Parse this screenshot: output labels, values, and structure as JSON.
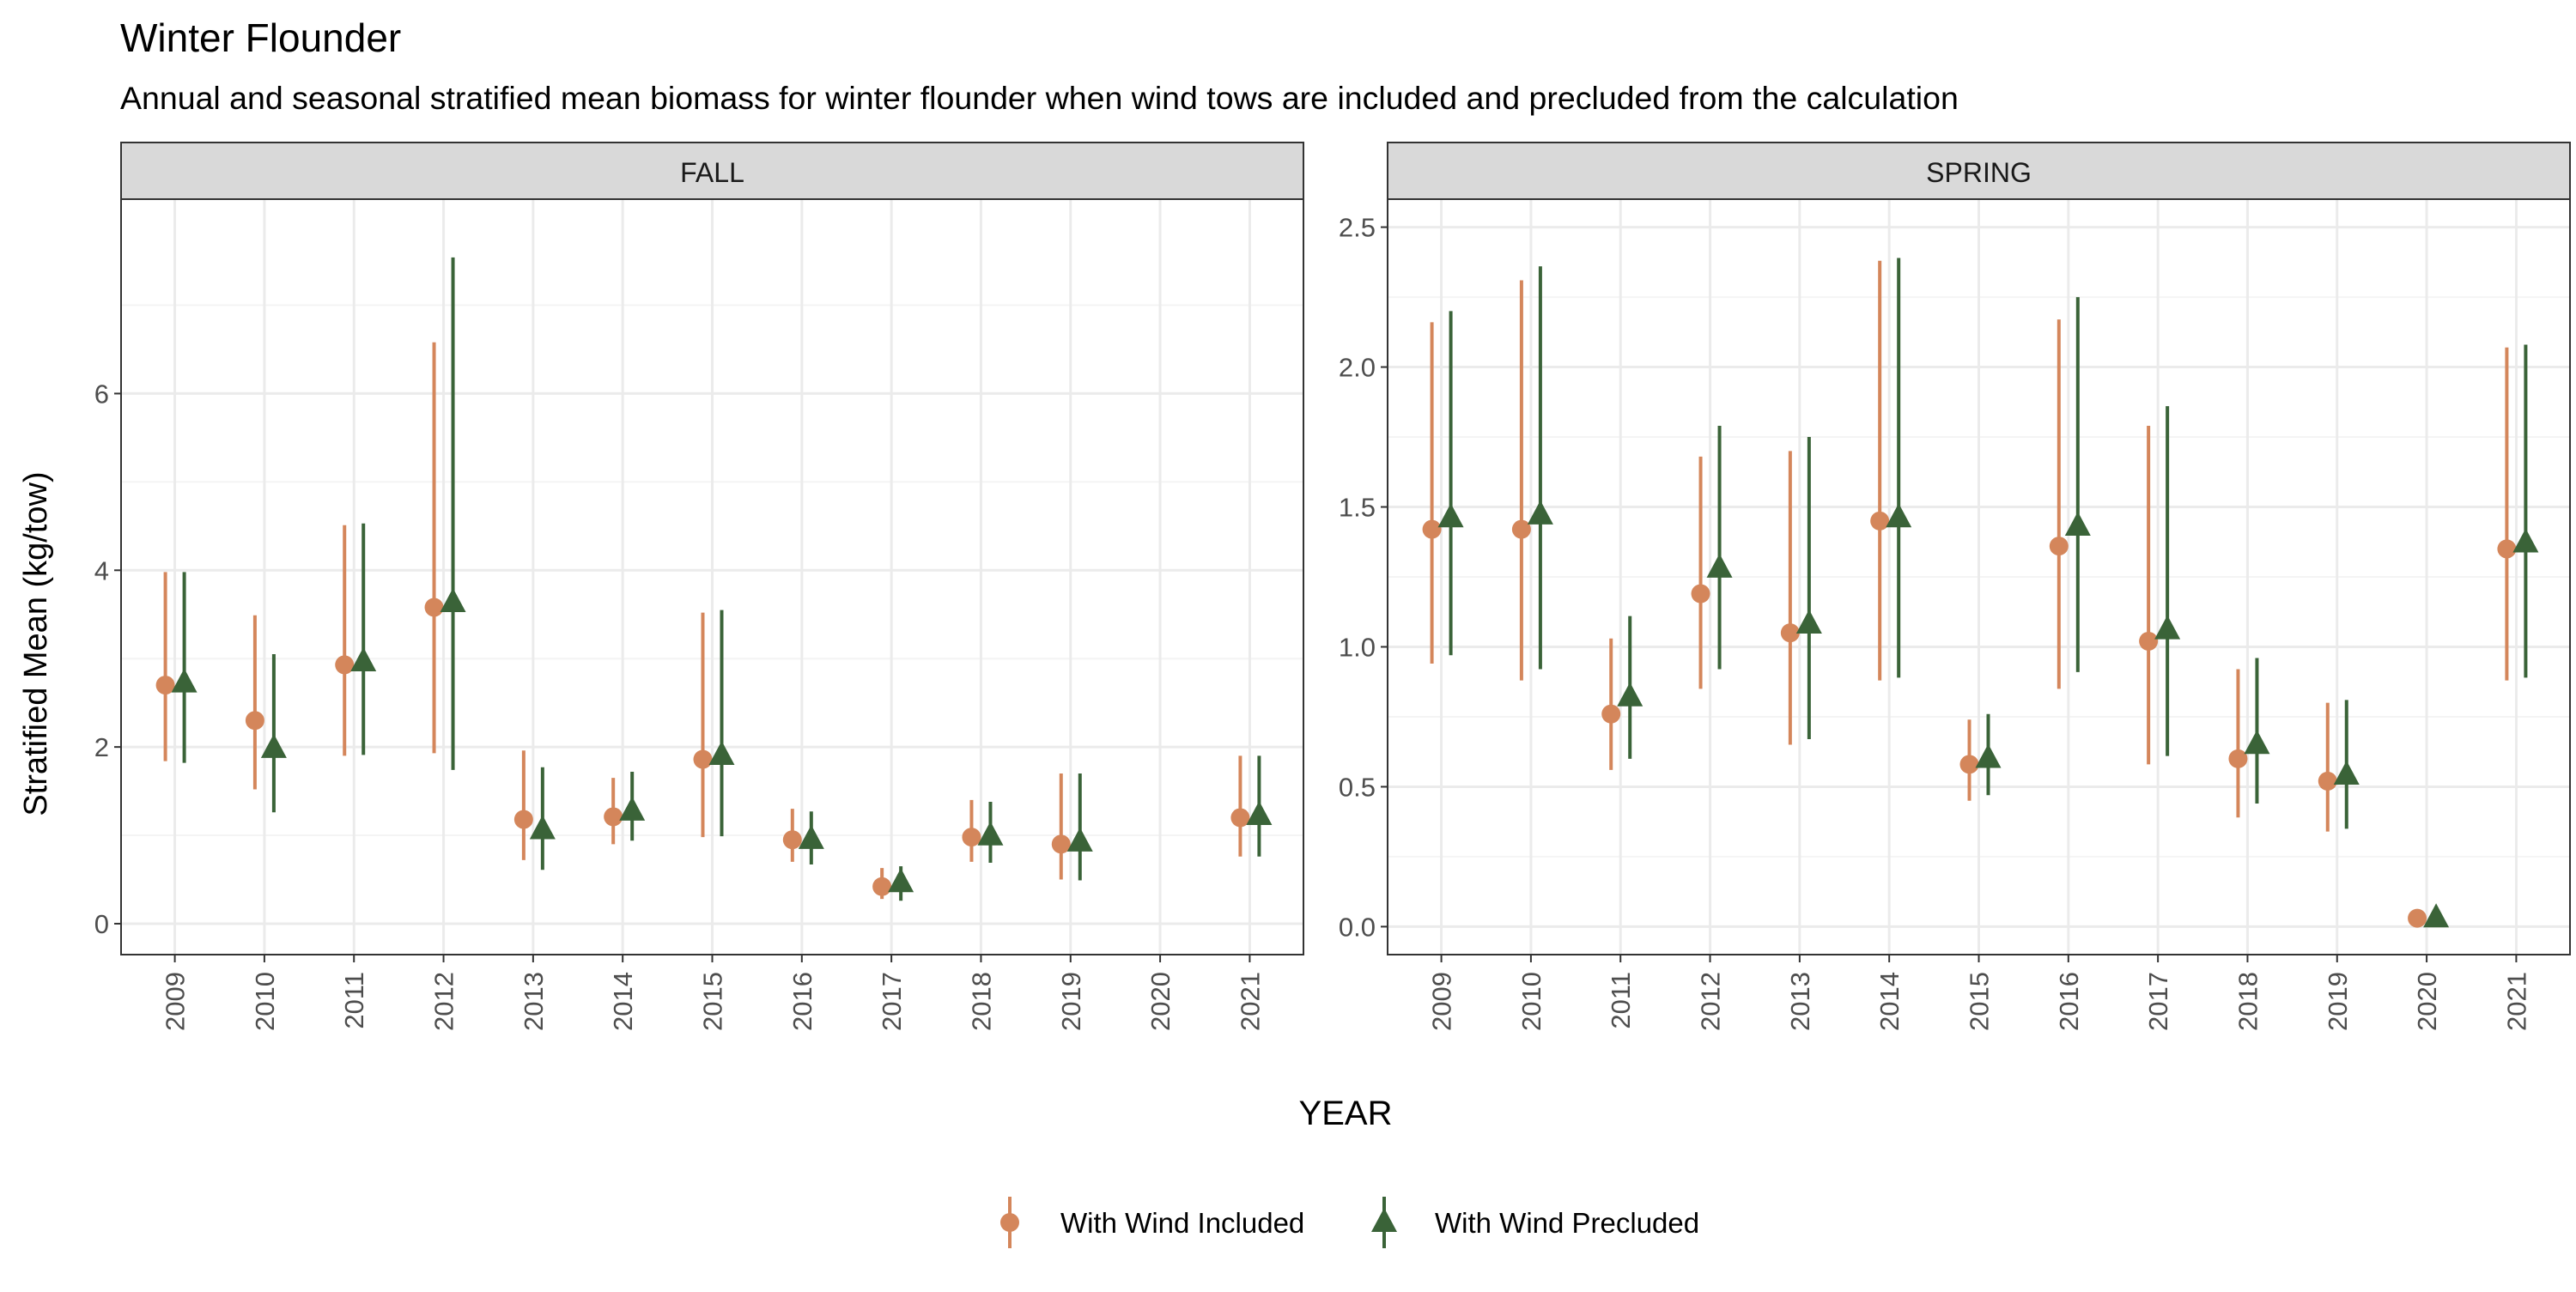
{
  "colors": {
    "included": "#D4865B",
    "precluded": "#3A6338",
    "strip_fill": "#D9D9D9",
    "grid_major": "#EBEBEB",
    "grid_minor": "#F4F4F4",
    "axis_text": "#4D4D4D"
  },
  "chart_data": {
    "type": "scatter",
    "title": "Winter Flounder",
    "subtitle": "Annual and seasonal stratified mean biomass for winter flounder when wind tows are included and precluded from the calculation",
    "xlabel": "YEAR",
    "ylabel": "Stratified Mean (kg/tow)",
    "legend_position": "bottom",
    "legend": [
      "With Wind Included",
      "With Wind Precluded"
    ],
    "categories": [
      "2009",
      "2010",
      "2011",
      "2012",
      "2013",
      "2014",
      "2015",
      "2016",
      "2017",
      "2018",
      "2019",
      "2020",
      "2021"
    ],
    "facets": [
      {
        "name": "FALL",
        "ylim": [
          -0.35,
          8.2
        ],
        "y_ticks": [
          0,
          2,
          4,
          6
        ],
        "y_tick_labels": [
          "0",
          "2",
          "4",
          "6"
        ],
        "series": [
          {
            "name": "With Wind Included",
            "values": [
              2.7,
              2.3,
              2.93,
              3.58,
              1.18,
              1.21,
              1.86,
              0.95,
              0.42,
              0.98,
              0.9,
              null,
              1.2
            ],
            "lower": [
              1.84,
              1.52,
              1.9,
              1.93,
              0.72,
              0.9,
              0.98,
              0.7,
              0.28,
              0.7,
              0.5,
              null,
              0.76
            ],
            "upper": [
              3.98,
              3.49,
              4.51,
              6.58,
              1.96,
              1.65,
              3.52,
              1.3,
              0.63,
              1.4,
              1.7,
              null,
              1.9
            ]
          },
          {
            "name": "With Wind Precluded",
            "values": [
              2.72,
              1.98,
              2.96,
              3.63,
              1.06,
              1.27,
              1.9,
              0.95,
              0.46,
              0.99,
              0.92,
              null,
              1.22
            ],
            "lower": [
              1.82,
              1.26,
              1.91,
              1.74,
              0.61,
              0.94,
              0.99,
              0.67,
              0.26,
              0.69,
              0.49,
              null,
              0.76
            ],
            "upper": [
              3.98,
              3.05,
              4.53,
              7.54,
              1.77,
              1.72,
              3.55,
              1.27,
              0.65,
              1.38,
              1.7,
              null,
              1.9
            ]
          }
        ]
      },
      {
        "name": "SPRING",
        "ylim": [
          -0.1,
          2.6
        ],
        "y_ticks": [
          0,
          0.5,
          1,
          1.5,
          2,
          2.5
        ],
        "y_tick_labels": [
          "0.0",
          "0.5",
          "1.0",
          "1.5",
          "2.0",
          "2.5"
        ],
        "series": [
          {
            "name": "With Wind Included",
            "values": [
              1.42,
              1.42,
              0.76,
              1.19,
              1.05,
              1.45,
              0.58,
              1.36,
              1.02,
              0.6,
              0.52,
              0.03,
              1.35
            ],
            "lower": [
              0.94,
              0.88,
              0.56,
              0.85,
              0.65,
              0.88,
              0.45,
              0.85,
              0.58,
              0.39,
              0.34,
              0.02,
              0.88
            ],
            "upper": [
              2.16,
              2.31,
              1.03,
              1.68,
              1.7,
              2.38,
              0.74,
              2.17,
              1.79,
              0.92,
              0.8,
              0.05,
              2.07
            ]
          },
          {
            "name": "With Wind Precluded",
            "values": [
              1.46,
              1.47,
              0.82,
              1.28,
              1.08,
              1.46,
              0.6,
              1.43,
              1.06,
              0.65,
              0.54,
              0.03,
              1.37
            ],
            "lower": [
              0.97,
              0.92,
              0.6,
              0.92,
              0.67,
              0.89,
              0.47,
              0.91,
              0.61,
              0.44,
              0.35,
              0.02,
              0.89
            ],
            "upper": [
              2.2,
              2.36,
              1.11,
              1.79,
              1.75,
              2.39,
              0.76,
              2.25,
              1.86,
              0.96,
              0.81,
              0.05,
              2.08
            ]
          }
        ]
      }
    ]
  }
}
